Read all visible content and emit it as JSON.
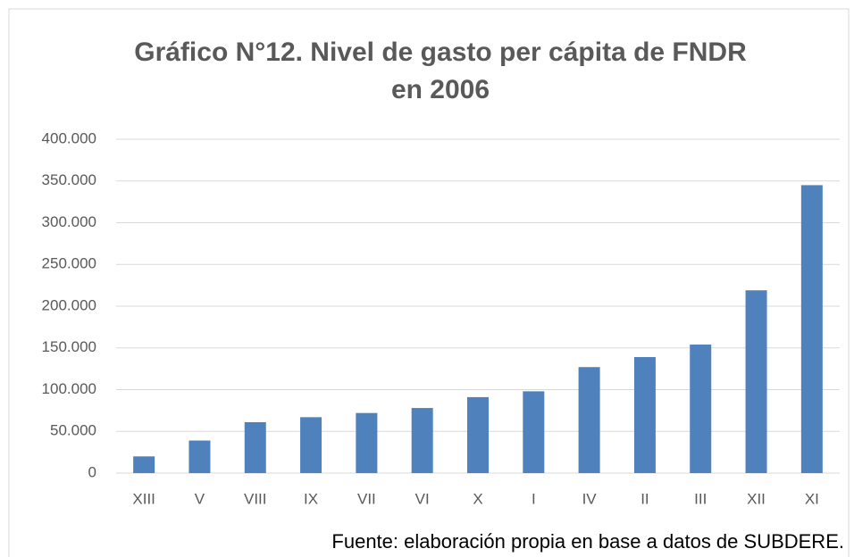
{
  "chart_data": {
    "type": "bar",
    "title": [
      "Gráfico N°12. Nivel de gasto per cápita de FNDR",
      "en 2006"
    ],
    "categories": [
      "XIII",
      "V",
      "VIII",
      "IX",
      "VII",
      "VI",
      "X",
      "I",
      "IV",
      "II",
      "III",
      "XII",
      "XI"
    ],
    "values": [
      20000,
      39000,
      61000,
      67000,
      72000,
      78000,
      91000,
      98000,
      127000,
      139000,
      154000,
      219000,
      345000
    ],
    "color": "#4f81bd",
    "ylim": [
      0,
      400000
    ],
    "yticks": [
      0,
      {
        "value": 50000,
        "label": "50.000"
      },
      {
        "value": 100000,
        "label": "100.000"
      },
      {
        "value": 150000,
        "label": "150.000"
      },
      {
        "value": 200000,
        "label": "200.000"
      },
      {
        "value": 250000,
        "label": "250.000"
      },
      {
        "value": 300000,
        "label": "300.000"
      },
      {
        "value": 350000,
        "label": "350.000"
      },
      {
        "value": 400000,
        "label": "400.000"
      }
    ],
    "grid": true,
    "source": "Fuente: elaboración propia en base a datos de SUBDERE."
  }
}
